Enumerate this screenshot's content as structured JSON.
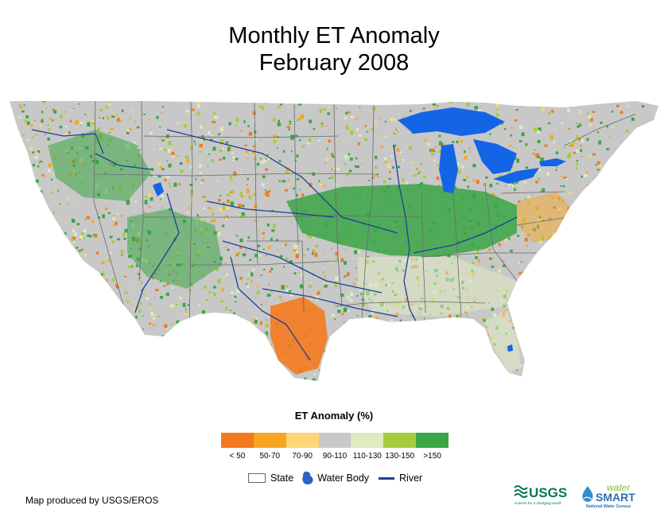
{
  "title": {
    "line1": "Monthly ET Anomaly",
    "line2": "February 2008"
  },
  "map": {
    "region": "Conterminous United States",
    "colors": {
      "background_normal": "#c8c8c8",
      "water": "#1464e6",
      "river": "#1f3d99",
      "state_lines": "#6a6a6a"
    }
  },
  "legend": {
    "title": "ET Anomaly (%)",
    "bins": [
      {
        "label": "< 50",
        "color": "#f47a20"
      },
      {
        "label": "50-70",
        "color": "#f6a623"
      },
      {
        "label": "70-90",
        "color": "#fdd576"
      },
      {
        "label": "90-110",
        "color": "#c8c8c8"
      },
      {
        "label": "110-130",
        "color": "#dfeabf"
      },
      {
        "label": "130-150",
        "color": "#a4cd3c"
      },
      {
        "label": ">150",
        "color": "#3aa646"
      }
    ],
    "features": {
      "state": "State",
      "water_body": "Water Body",
      "river": "River"
    }
  },
  "credit": "Map produced by USGS/EROS",
  "logos": {
    "usgs": "USGS",
    "usgs_tagline": "science for a changing world",
    "watersmart_1": "water",
    "watersmart_2": "SMART",
    "watersmart_tagline": "National Water Census"
  }
}
